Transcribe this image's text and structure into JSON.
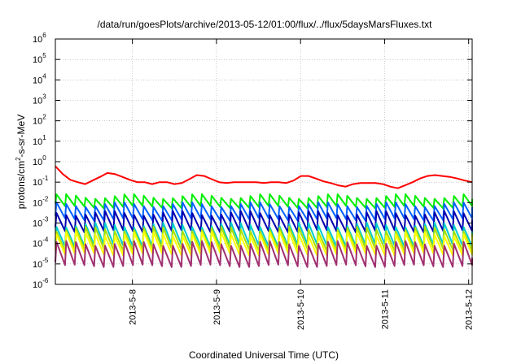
{
  "chart_data": {
    "type": "line",
    "title": "/data/run/goesPlots/archive/2013-05-12/01:00/flux/../flux/5daysMarsFluxes.txt",
    "xlabel": "Coordinated Universal Time (UTC)",
    "ylabel": {
      "pre": "protons/cm",
      "sup": "2",
      "post": "-s-sr-MeV"
    },
    "y_scale": "log",
    "ylim_exponents": [
      -6,
      6
    ],
    "y_ticks": [
      {
        "base": "10",
        "exp": "-6",
        "value": 1e-06
      },
      {
        "base": "10",
        "exp": "-5",
        "value": 1e-05
      },
      {
        "base": "10",
        "exp": "-4",
        "value": 0.0001
      },
      {
        "base": "10",
        "exp": "-3",
        "value": 0.001
      },
      {
        "base": "10",
        "exp": "-2",
        "value": 0.01
      },
      {
        "base": "10",
        "exp": "-1",
        "value": 0.1
      },
      {
        "base": "10",
        "exp": "0",
        "value": 1
      },
      {
        "base": "10",
        "exp": "1",
        "value": 10
      },
      {
        "base": "10",
        "exp": "2",
        "value": 100
      },
      {
        "base": "10",
        "exp": "3",
        "value": 1000
      },
      {
        "base": "10",
        "exp": "4",
        "value": 10000
      },
      {
        "base": "10",
        "exp": "5",
        "value": 100000
      },
      {
        "base": "10",
        "exp": "6",
        "value": 1000000
      }
    ],
    "x_range": [
      "2013-05-07T02:00",
      "2013-05-12T01:00"
    ],
    "x_ticks": [
      {
        "label": "2013-5-8",
        "date": "2013-05-08T00:00"
      },
      {
        "label": "2013-5-9",
        "date": "2013-05-09T00:00"
      },
      {
        "label": "2013-5-10",
        "date": "2013-05-10T00:00"
      },
      {
        "label": "2013-5-11",
        "date": "2013-05-11T00:00"
      },
      {
        "label": "2013-5-12",
        "date": "2013-05-12T00:00"
      }
    ],
    "grid": true,
    "series": [
      {
        "color": "#ff0000",
        "pattern": "slow",
        "start_value": 0.6,
        "values": [
          0.6,
          0.25,
          0.13,
          0.1,
          0.08,
          0.12,
          0.18,
          0.28,
          0.25,
          0.18,
          0.13,
          0.1,
          0.1,
          0.08,
          0.1,
          0.1,
          0.08,
          0.09,
          0.14,
          0.22,
          0.2,
          0.14,
          0.1,
          0.09,
          0.1,
          0.1,
          0.1,
          0.1,
          0.09,
          0.1,
          0.1,
          0.09,
          0.12,
          0.2,
          0.2,
          0.15,
          0.11,
          0.09,
          0.07,
          0.06,
          0.08,
          0.09,
          0.09,
          0.09,
          0.08,
          0.06,
          0.05,
          0.07,
          0.1,
          0.15,
          0.2,
          0.22,
          0.2,
          0.18,
          0.15,
          0.12,
          0.1
        ]
      },
      {
        "color": "#00ee00",
        "pattern": "sawtooth",
        "peak": 0.02,
        "trough": 0.006,
        "end_value": 0.015
      },
      {
        "color": "#0060ff",
        "pattern": "sawtooth",
        "peak": 0.008,
        "trough": 0.0015,
        "end_value": 0.006
      },
      {
        "color": "#0000b0",
        "pattern": "sawtooth",
        "peak": 0.003,
        "trough": 0.0004,
        "end_value": 0.0015
      },
      {
        "color": "#00cccc",
        "pattern": "sawtooth",
        "peak": 0.0008,
        "trough": 8e-05,
        "end_value": 0.0004
      },
      {
        "color": "#a8e000",
        "pattern": "sawtooth",
        "peak": 0.0005,
        "trough": 5e-05,
        "end_value": 0.0003
      },
      {
        "color": "#ffff00",
        "pattern": "sawtooth",
        "peak": 0.0003,
        "trough": 3e-05,
        "end_value": 0.0002
      },
      {
        "color": "#a03070",
        "pattern": "sawtooth",
        "peak": 0.0001,
        "trough": 8e-06,
        "end_value": 2e-05
      }
    ]
  }
}
